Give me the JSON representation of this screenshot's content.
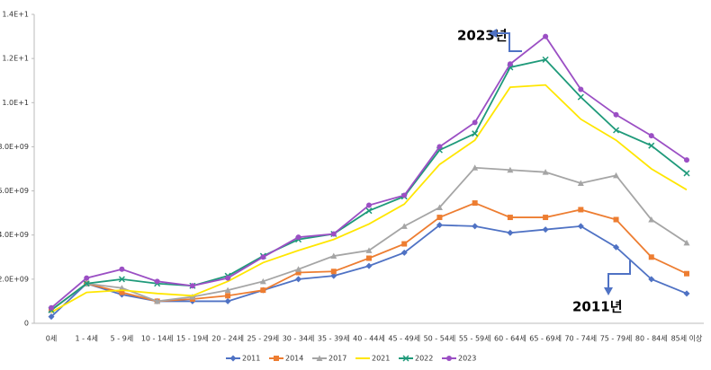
{
  "chart_data": {
    "type": "line",
    "categories": [
      "0세",
      "1 - 4세",
      "5 - 9세",
      "10 - 14세",
      "15 - 19세",
      "20 - 24세",
      "25 - 29세",
      "30 - 34세",
      "35 - 39세",
      "40 - 44세",
      "45 - 49세",
      "50 - 54세",
      "55 - 59세",
      "60 - 64세",
      "65 - 69세",
      "70 - 74세",
      "75 - 79세",
      "80 - 84세",
      "85세 이상"
    ],
    "ylim": [
      0,
      14000000000.0
    ],
    "yticks": [
      0,
      {
        "value": 2000000000.0,
        "label": "2.0E+09"
      },
      {
        "value": 4000000000.0,
        "label": "4.0E+09"
      },
      {
        "value": 6000000000.0,
        "label": "6.0E+09"
      },
      {
        "value": 8000000000.0,
        "label": "8.0E+09"
      },
      {
        "value": 10000000000.0,
        "label": "1.0E+1"
      },
      {
        "value": 12000000000.0,
        "label": "1.2E+1"
      },
      {
        "value": 14000000000.0,
        "label": "1.4E+1"
      }
    ],
    "legend": "bottom",
    "annotations": [
      "2023년",
      "2011년"
    ],
    "series": [
      {
        "name": "2011",
        "color": "#4f72c4",
        "marker": "diamond",
        "values": [
          300000000.0,
          1800000000.0,
          1300000000.0,
          1000000000.0,
          1000000000.0,
          1000000000.0,
          1500000000.0,
          2000000000.0,
          2150000000.0,
          2600000000.0,
          3200000000.0,
          4450000000.0,
          4400000000.0,
          4100000000.0,
          4250000000.0,
          4400000000.0,
          3450000000.0,
          2000000000.0,
          1350000000.0
        ]
      },
      {
        "name": "2014",
        "color": "#ed7d31",
        "marker": "square",
        "values": [
          600000000.0,
          1800000000.0,
          1400000000.0,
          1000000000.0,
          1100000000.0,
          1250000000.0,
          1500000000.0,
          2300000000.0,
          2350000000.0,
          2950000000.0,
          3600000000.0,
          4800000000.0,
          5450000000.0,
          4800000000.0,
          4800000000.0,
          5150000000.0,
          4700000000.0,
          3000000000.0,
          2250000000.0
        ]
      },
      {
        "name": "2017",
        "color": "#a5a5a5",
        "marker": "triangle",
        "values": [
          600000000.0,
          1800000000.0,
          1600000000.0,
          1000000000.0,
          1200000000.0,
          1500000000.0,
          1900000000.0,
          2450000000.0,
          3050000000.0,
          3300000000.0,
          4400000000.0,
          5250000000.0,
          7050000000.0,
          6950000000.0,
          6850000000.0,
          6350000000.0,
          6700000000.0,
          4700000000.0,
          3650000000.0
        ]
      },
      {
        "name": "2021",
        "color": "#ffe600",
        "marker": "none",
        "values": [
          500000000.0,
          1400000000.0,
          1500000000.0,
          1350000000.0,
          1250000000.0,
          1900000000.0,
          2750000000.0,
          3300000000.0,
          3800000000.0,
          4500000000.0,
          5400000000.0,
          7200000000.0,
          8300000000.0,
          10700000000.0,
          10800000000.0,
          9250000000.0,
          8300000000.0,
          7000000000.0,
          6050000000.0
        ]
      },
      {
        "name": "2022",
        "color": "#1f9a7a",
        "marker": "x",
        "values": [
          600000000.0,
          1800000000.0,
          2000000000.0,
          1800000000.0,
          1700000000.0,
          2150000000.0,
          3050000000.0,
          3800000000.0,
          4050000000.0,
          5100000000.0,
          5750000000.0,
          7850000000.0,
          8600000000.0,
          11600000000.0,
          11950000000.0,
          10250000000.0,
          8750000000.0,
          8050000000.0,
          6800000000.0
        ]
      },
      {
        "name": "2023",
        "color": "#9b4fc4",
        "marker": "circle",
        "values": [
          700000000.0,
          2050000000.0,
          2450000000.0,
          1900000000.0,
          1700000000.0,
          2050000000.0,
          3000000000.0,
          3900000000.0,
          4050000000.0,
          5350000000.0,
          5800000000.0,
          8000000000.0,
          9100000000.0,
          11750000000.0,
          13000000000.0,
          10600000000.0,
          9450000000.0,
          8500000000.0,
          7400000000.0
        ]
      }
    ]
  }
}
